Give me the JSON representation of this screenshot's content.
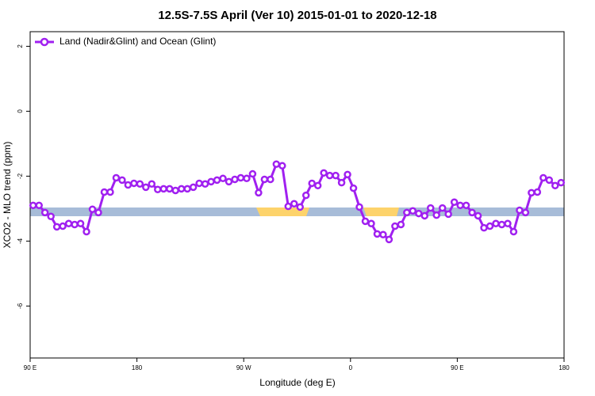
{
  "chart_data": {
    "type": "line",
    "title": "12.5S-7.5S April (Ver 10)   2015-01-01 to 2020-12-18",
    "x_label": "Longitude (deg E)",
    "y_label": "XCO2 - MLO trend (ppm)",
    "x": [
      92.5,
      97.5,
      102.5,
      107.5,
      112.5,
      117.5,
      122.5,
      127.5,
      132.5,
      137.5,
      142.5,
      147.5,
      152.5,
      157.5,
      162.5,
      167.5,
      172.5,
      177.5,
      182.5,
      187.5,
      192.5,
      197.5,
      202.5,
      207.5,
      212.5,
      217.5,
      222.5,
      227.5,
      232.5,
      237.5,
      242.5,
      247.5,
      252.5,
      257.5,
      262.5,
      267.5,
      272.5,
      277.5,
      282.5,
      287.5,
      292.5,
      297.5,
      302.5,
      307.5,
      312.5,
      317.5,
      322.5,
      327.5,
      332.5,
      337.5,
      342.5,
      347.5,
      352.5,
      357.5,
      362.5,
      367.5,
      372.5,
      377.5,
      382.5,
      387.5,
      392.5,
      397.5,
      402.5,
      407.5,
      412.5,
      417.5,
      422.5,
      427.5,
      432.5,
      437.5,
      442.5,
      447.5,
      452.5,
      457.5,
      462.5,
      467.5,
      472.5,
      477.5,
      482.5,
      487.5,
      492.5,
      497.5,
      502.5,
      507.5,
      512.5,
      517.5,
      522.5,
      527.5,
      532.5,
      537.5
    ],
    "series": [
      {
        "name": "Land (Nadir&Glint) and Ocean (Glint)",
        "color": "#a020f0",
        "values": [
          -2.9,
          -2.9,
          -3.12,
          -3.24,
          -3.56,
          -3.54,
          -3.46,
          -3.49,
          -3.46,
          -3.71,
          -3.02,
          -3.12,
          -2.49,
          -2.49,
          -2.05,
          -2.12,
          -2.27,
          -2.22,
          -2.24,
          -2.34,
          -2.24,
          -2.41,
          -2.39,
          -2.39,
          -2.44,
          -2.39,
          -2.39,
          -2.34,
          -2.22,
          -2.24,
          -2.17,
          -2.12,
          -2.07,
          -2.17,
          -2.1,
          -2.05,
          -2.07,
          -1.93,
          -2.51,
          -2.1,
          -2.1,
          -1.63,
          -1.68,
          -2.93,
          -2.85,
          -2.95,
          -2.59,
          -2.22,
          -2.29,
          -1.9,
          -1.98,
          -1.98,
          -2.2,
          -1.95,
          -2.37,
          -2.95,
          -3.39,
          -3.46,
          -3.78,
          -3.8,
          -3.95,
          -3.54,
          -3.49,
          -3.12,
          -3.07,
          -3.15,
          -3.22,
          -2.98,
          -3.2,
          -2.98,
          -3.17,
          -2.8,
          -2.9,
          -2.9,
          -3.12,
          -3.22,
          -3.59,
          -3.54,
          -3.46,
          -3.49,
          -3.46,
          -3.71,
          -3.05,
          -3.12,
          -2.51,
          -2.49,
          -2.05,
          -2.12,
          -2.29,
          -2.2
        ]
      }
    ],
    "xlim": [
      90,
      540
    ],
    "xticks": [
      {
        "value": 90,
        "label": "90 E"
      },
      180,
      {
        "value": 270,
        "label": "90 W"
      },
      {
        "value": 360,
        "label": "0"
      },
      {
        "value": 450,
        "label": "90 E"
      },
      {
        "value": 540,
        "label": "180"
      }
    ],
    "ylim": [
      -7.6,
      2.45
    ],
    "yticks": [
      2,
      0,
      -2,
      -4,
      -6
    ],
    "legend": "top-left"
  }
}
